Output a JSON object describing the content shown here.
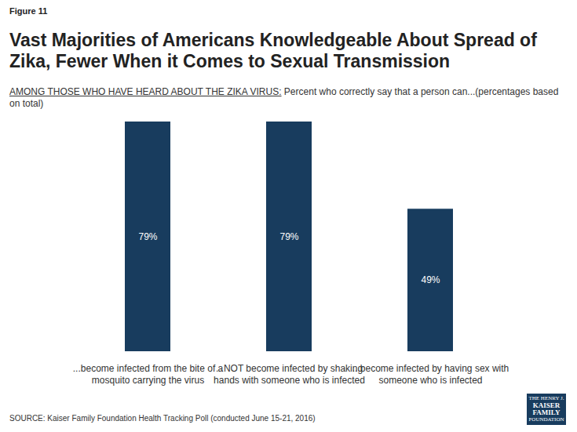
{
  "chart_data": {
    "type": "bar",
    "figure_label": "Figure 11",
    "title": "Vast Majorities of Americans Knowledgeable About Spread of Zika, Fewer When it Comes to Sexual Transmission",
    "subtitle": [
      "AMONG THOSE WHO HAVE HEARD ABOUT THE ZIKA VIRUS:",
      "Percent who correctly say that a person can...(percentages based on total)"
    ],
    "categories": [
      "...become infected from the bite of a mosquito carrying the virus",
      "...NOT become infected by shaking hands with someone who is infected",
      "...become infected by having sex with someone who is infected"
    ],
    "values": [
      79,
      79,
      49
    ],
    "value_labels": [
      "79%",
      "79%",
      "49%"
    ],
    "color": "#183c5e",
    "ylim": [
      0,
      79
    ],
    "data_labels": true,
    "tick_labels": "x",
    "source": "SOURCE: Kaiser Family Foundation Health Tracking Poll (conducted June 15-21, 2016)",
    "logo": [
      "THE HENRY J.",
      "KAISER",
      "FAMILY",
      "FOUNDATION"
    ]
  }
}
